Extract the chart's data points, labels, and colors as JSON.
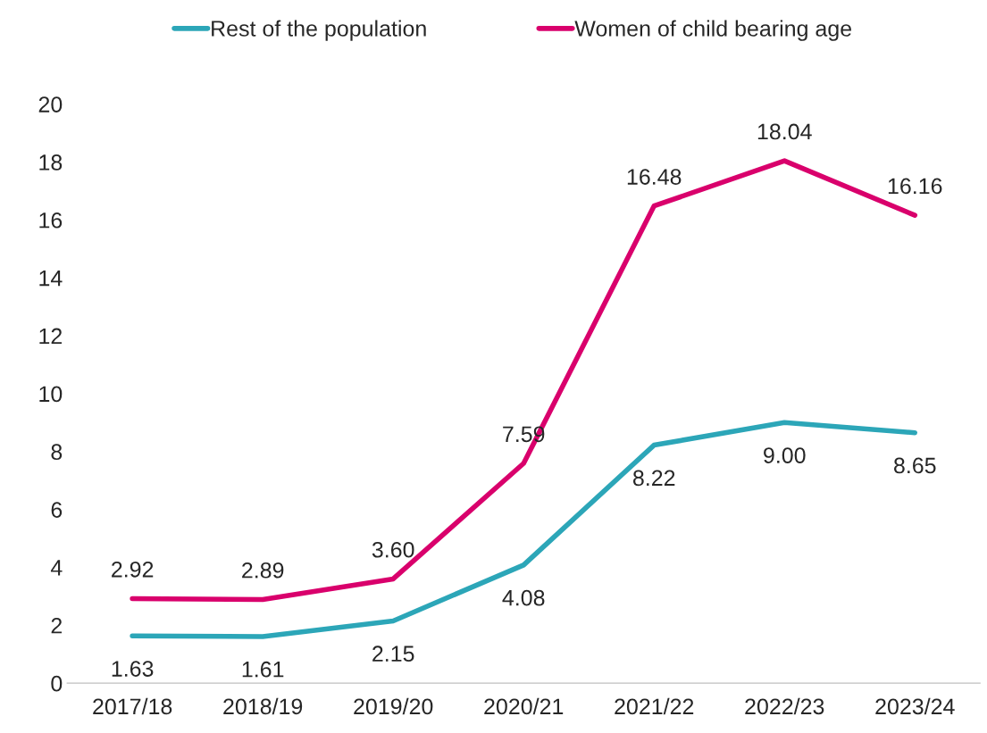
{
  "chart_data": {
    "type": "line",
    "categories": [
      "2017/18",
      "2018/19",
      "2019/20",
      "2020/21",
      "2021/22",
      "2022/23",
      "2023/24"
    ],
    "series": [
      {
        "name": "Rest of the population",
        "color": "#2ca6b8",
        "values": [
          1.63,
          1.61,
          2.15,
          4.08,
          8.22,
          9.0,
          8.65
        ],
        "value_labels": [
          "1.63",
          "1.61",
          "2.15",
          "4.08",
          "8.22",
          "9.00",
          "8.65"
        ]
      },
      {
        "name": "Women of child bearing age",
        "color": "#d9006c",
        "values": [
          2.92,
          2.89,
          3.6,
          7.59,
          16.48,
          18.04,
          16.16
        ],
        "value_labels": [
          "2.92",
          "2.89",
          "3.60",
          "7.59",
          "16.48",
          "18.04",
          "16.16"
        ]
      }
    ],
    "ylim": [
      0,
      20
    ],
    "yticks": [
      0,
      2,
      4,
      6,
      8,
      10,
      12,
      14,
      16,
      18,
      20
    ],
    "grid": false,
    "legend": "top",
    "marker": "none",
    "line_style": "solid"
  }
}
